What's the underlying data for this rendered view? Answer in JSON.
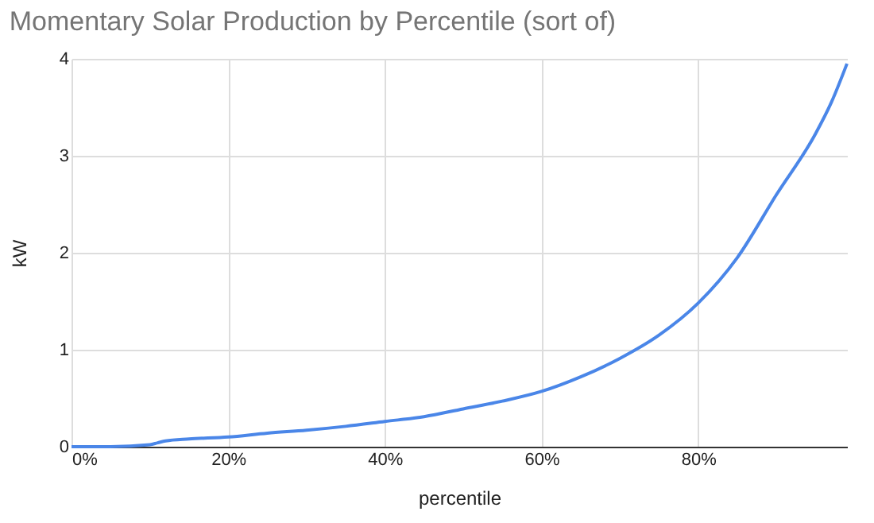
{
  "chart_data": {
    "type": "line",
    "title": "Momentary Solar Production by Percentile (sort of)",
    "xlabel": "percentile",
    "ylabel": "kW",
    "x": [
      0,
      5,
      10,
      11,
      12,
      15,
      20,
      25,
      30,
      35,
      40,
      45,
      50,
      55,
      60,
      65,
      70,
      75,
      80,
      85,
      90,
      95,
      97,
      99
    ],
    "series": [
      {
        "color": "#4a86e8",
        "values": [
          0,
          0,
          0.02,
          0.04,
          0.06,
          0.08,
          0.1,
          0.14,
          0.17,
          0.21,
          0.26,
          0.31,
          0.39,
          0.47,
          0.57,
          0.72,
          0.91,
          1.15,
          1.48,
          1.95,
          2.6,
          3.23,
          3.55,
          3.95
        ]
      }
    ],
    "xlim": [
      0,
      99
    ],
    "xticks": [
      {
        "value": 0,
        "label": "0%"
      },
      {
        "value": 20,
        "label": "20%"
      },
      {
        "value": 40,
        "label": "40%"
      },
      {
        "value": 60,
        "label": "60%"
      },
      {
        "value": 80,
        "label": "80%"
      }
    ],
    "ylim": [
      0,
      4
    ],
    "yticks": [
      0,
      1,
      2,
      3,
      4
    ],
    "grid": true,
    "legend": false,
    "marker": "none",
    "line_style": "solid"
  }
}
